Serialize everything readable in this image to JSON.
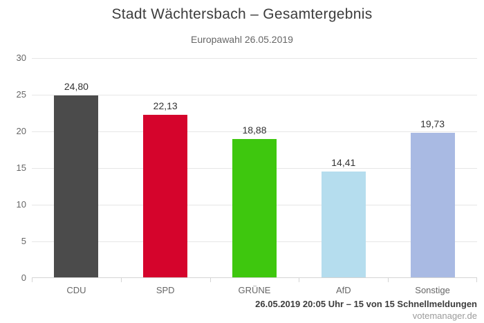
{
  "chart_data": {
    "type": "bar",
    "title": "Stadt Wächtersbach – Gesamtergebnis",
    "subtitle": "Europawahl 26.05.2019",
    "categories": [
      "CDU",
      "SPD",
      "GRÜNE",
      "AfD",
      "Sonstige"
    ],
    "values": [
      24.8,
      22.13,
      18.88,
      14.41,
      19.73
    ],
    "value_labels": [
      "24,80",
      "22,13",
      "18,88",
      "14,41",
      "19,73"
    ],
    "bar_colors": [
      "#4b4b4b",
      "#d5042c",
      "#3ec70e",
      "#b5ddee",
      "#a9bae3"
    ],
    "xlabel": "",
    "ylabel": "",
    "ylim": [
      0,
      30
    ],
    "yticks": [
      0,
      5,
      10,
      15,
      20,
      25,
      30
    ],
    "grid": true,
    "legend": "none",
    "colors": {
      "grid_line": "#e6e6e6",
      "axis_line": "#d4d4d4",
      "title_text": "#3c3c3c",
      "subtitle_text": "#666666",
      "axis_label_text": "#666666",
      "value_label_text": "#333333"
    }
  },
  "footer": {
    "status": "26.05.2019 20:05 Uhr – 15 von 15 Schnellmeldungen",
    "watermark": "votemanager.de"
  }
}
